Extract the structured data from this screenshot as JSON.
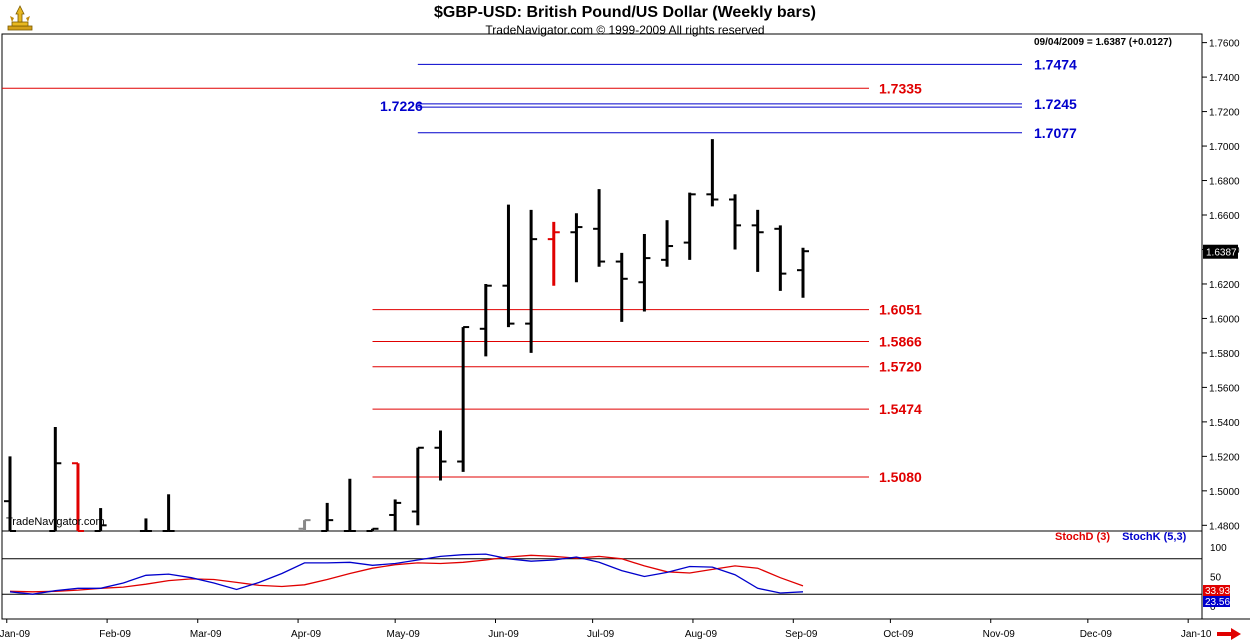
{
  "header": {
    "title": "$GBP-USD:  British Pound/US Dollar  (Weekly bars)",
    "copyright": "TradeNavigator.com © 1999-2009 All rights reserved",
    "status_line": "09/04/2009 = 1.6387 (+0.0127)",
    "watermark": "TradeNavigator.com"
  },
  "icons": {
    "logo": "trophy-icon",
    "next": "arrow-right-icon"
  },
  "colors": {
    "blue": "#0000cc",
    "red": "#e00000",
    "black": "#000000",
    "background": "#ffffff"
  },
  "chart_data": [
    {
      "type": "ohlc",
      "title": "$GBP-USD:  British Pound/US Dollar  (Weekly bars)",
      "ylim": [
        1.4767,
        1.765
      ],
      "y_ticks": [
        "1.4800",
        "1.5000",
        "1.5200",
        "1.5400",
        "1.5600",
        "1.5800",
        "1.6000",
        "1.6200",
        "1.6400",
        "1.6600",
        "1.6800",
        "1.7000",
        "1.7200",
        "1.7400",
        "1.7600"
      ],
      "x_ticks": [
        "Jan-09",
        "Feb-09",
        "Mar-09",
        "Apr-09",
        "May-09",
        "Jun-09",
        "Jul-09",
        "Aug-09",
        "Sep-09",
        "Oct-09",
        "Nov-09",
        "Dec-09",
        "Jan-10"
      ],
      "last_price": "1.6387",
      "bars": [
        {
          "date": "2009-01-02",
          "o": 1.494,
          "h": 1.52,
          "l": 1.47,
          "c": 1.47
        },
        {
          "date": "2009-01-16",
          "o": 1.47,
          "h": 1.537,
          "l": 1.46,
          "c": 1.516
        },
        {
          "date": "2009-01-23",
          "o": 1.516,
          "h": 1.516,
          "l": 1.46,
          "c": 1.46,
          "color": "red"
        },
        {
          "date": "2009-01-30",
          "o": 1.47,
          "h": 1.49,
          "l": 1.47,
          "c": 1.48
        },
        {
          "date": "2009-02-13",
          "o": 1.47,
          "h": 1.484,
          "l": 1.47,
          "c": 1.47
        },
        {
          "date": "2009-02-20",
          "o": 1.47,
          "h": 1.498,
          "l": 1.47,
          "c": 1.47
        },
        {
          "date": "2009-04-03",
          "o": 1.478,
          "h": 1.483,
          "l": 1.47,
          "c": 1.483,
          "color": "gray"
        },
        {
          "date": "2009-04-10",
          "o": 1.47,
          "h": 1.493,
          "l": 1.47,
          "c": 1.483
        },
        {
          "date": "2009-04-17",
          "o": 1.47,
          "h": 1.507,
          "l": 1.47,
          "c": 1.47
        },
        {
          "date": "2009-04-24",
          "o": 1.476,
          "h": 1.478,
          "l": 1.47,
          "c": 1.478
        },
        {
          "date": "2009-05-01",
          "o": 1.486,
          "h": 1.495,
          "l": 1.47,
          "c": 1.493
        },
        {
          "date": "2009-05-08",
          "o": 1.488,
          "h": 1.525,
          "l": 1.48,
          "c": 1.525
        },
        {
          "date": "2009-05-15",
          "o": 1.525,
          "h": 1.535,
          "l": 1.506,
          "c": 1.517
        },
        {
          "date": "2009-05-22",
          "o": 1.517,
          "h": 1.595,
          "l": 1.511,
          "c": 1.595
        },
        {
          "date": "2009-05-29",
          "o": 1.594,
          "h": 1.62,
          "l": 1.578,
          "c": 1.619
        },
        {
          "date": "2009-06-05",
          "o": 1.619,
          "h": 1.666,
          "l": 1.595,
          "c": 1.597
        },
        {
          "date": "2009-06-12",
          "o": 1.597,
          "h": 1.663,
          "l": 1.58,
          "c": 1.646
        },
        {
          "date": "2009-06-19",
          "o": 1.646,
          "h": 1.656,
          "l": 1.619,
          "c": 1.65,
          "color": "red"
        },
        {
          "date": "2009-06-26",
          "o": 1.65,
          "h": 1.661,
          "l": 1.621,
          "c": 1.653
        },
        {
          "date": "2009-07-03",
          "o": 1.652,
          "h": 1.675,
          "l": 1.63,
          "c": 1.633
        },
        {
          "date": "2009-07-10",
          "o": 1.633,
          "h": 1.638,
          "l": 1.598,
          "c": 1.623
        },
        {
          "date": "2009-07-17",
          "o": 1.621,
          "h": 1.649,
          "l": 1.604,
          "c": 1.635
        },
        {
          "date": "2009-07-24",
          "o": 1.634,
          "h": 1.657,
          "l": 1.63,
          "c": 1.642
        },
        {
          "date": "2009-07-31",
          "o": 1.644,
          "h": 1.673,
          "l": 1.634,
          "c": 1.672
        },
        {
          "date": "2009-08-07",
          "o": 1.672,
          "h": 1.704,
          "l": 1.665,
          "c": 1.669
        },
        {
          "date": "2009-08-14",
          "o": 1.669,
          "h": 1.672,
          "l": 1.64,
          "c": 1.654
        },
        {
          "date": "2009-08-21",
          "o": 1.654,
          "h": 1.663,
          "l": 1.627,
          "c": 1.65
        },
        {
          "date": "2009-08-28",
          "o": 1.652,
          "h": 1.654,
          "l": 1.616,
          "c": 1.626
        },
        {
          "date": "2009-09-04",
          "o": 1.628,
          "h": 1.641,
          "l": 1.612,
          "c": 1.639
        }
      ],
      "levels": [
        {
          "value": 1.7474,
          "label": "1.7474",
          "color": "blue",
          "from": "2009-05-08"
        },
        {
          "value": 1.7335,
          "label": "1.7335",
          "color": "red",
          "from": "2009-01-01"
        },
        {
          "value": 1.7245,
          "label": "1.7245",
          "color": "blue",
          "from": "2009-05-08"
        },
        {
          "value": 1.7226,
          "label": "1.7226",
          "color": "blue",
          "from": "2009-05-08"
        },
        {
          "value": 1.7077,
          "label": "1.7077",
          "color": "blue",
          "from": "2009-05-08"
        },
        {
          "value": 1.6051,
          "label": "1.6051",
          "color": "red",
          "from": "2009-04-24"
        },
        {
          "value": 1.5866,
          "label": "1.5866",
          "color": "red",
          "from": "2009-04-24"
        },
        {
          "value": 1.572,
          "label": "1.5720",
          "color": "red",
          "from": "2009-04-24"
        },
        {
          "value": 1.5474,
          "label": "1.5474",
          "color": "red",
          "from": "2009-04-24"
        },
        {
          "value": 1.508,
          "label": "1.5080",
          "color": "red",
          "from": "2009-04-24"
        }
      ]
    },
    {
      "type": "line",
      "ylim": [
        0,
        100
      ],
      "y_ticks": [
        "100",
        "50",
        "0"
      ],
      "reference_lines": [
        80,
        20
      ],
      "legend": [
        "StochD (3)",
        "StochK (5,3)"
      ],
      "last_values": [
        "33.93",
        "23.56"
      ],
      "x": [
        "2009-01-02",
        "2009-01-09",
        "2009-01-16",
        "2009-01-23",
        "2009-01-30",
        "2009-02-06",
        "2009-02-13",
        "2009-02-20",
        "2009-02-27",
        "2009-03-06",
        "2009-03-13",
        "2009-03-20",
        "2009-03-27",
        "2009-04-03",
        "2009-04-10",
        "2009-04-17",
        "2009-04-24",
        "2009-05-01",
        "2009-05-08",
        "2009-05-15",
        "2009-05-22",
        "2009-05-29",
        "2009-06-05",
        "2009-06-12",
        "2009-06-19",
        "2009-06-26",
        "2009-07-03",
        "2009-07-10",
        "2009-07-17",
        "2009-07-24",
        "2009-07-31",
        "2009-08-07",
        "2009-08-14",
        "2009-08-21",
        "2009-08-28",
        "2009-09-04"
      ],
      "series": [
        {
          "name": "StochD (3)",
          "color": "red",
          "values": [
            25,
            24,
            25,
            27,
            30,
            32,
            37,
            43,
            46,
            45,
            40,
            35,
            33,
            36,
            45,
            55,
            64,
            70,
            73,
            72,
            74,
            78,
            83,
            86,
            84,
            81,
            84,
            80,
            68,
            58,
            56,
            62,
            68,
            64,
            48,
            34
          ]
        },
        {
          "name": "StochK (5,3)",
          "color": "blue",
          "values": [
            24,
            20,
            26,
            30,
            30,
            39,
            52,
            54,
            48,
            39,
            28,
            40,
            55,
            73,
            73,
            74,
            69,
            72,
            78,
            84,
            87,
            88,
            80,
            76,
            78,
            83,
            74,
            60,
            50,
            57,
            67,
            66,
            53,
            30,
            22,
            24
          ]
        }
      ]
    }
  ]
}
